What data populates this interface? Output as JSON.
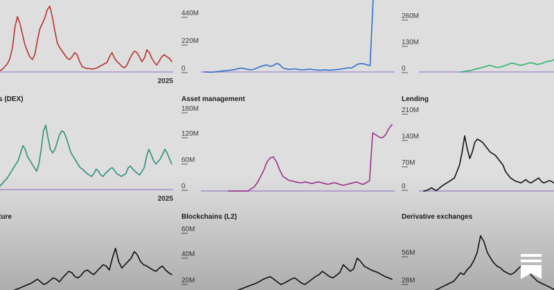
{
  "chart_data": [
    {
      "type": "line",
      "title": "",
      "color": "#b8322b",
      "x_end_label": "2025",
      "yticks": [],
      "ymax": 100,
      "values": [
        2,
        4,
        8,
        12,
        20,
        35,
        65,
        80,
        70,
        55,
        40,
        30,
        22,
        18,
        25,
        45,
        62,
        70,
        78,
        90,
        95,
        80,
        60,
        42,
        35,
        30,
        25,
        20,
        18,
        22,
        28,
        25,
        15,
        8,
        6,
        5,
        5,
        4,
        5,
        6,
        8,
        10,
        12,
        14,
        22,
        28,
        20,
        15,
        12,
        8,
        6,
        10,
        18,
        25,
        30,
        28,
        22,
        15,
        20,
        32,
        28,
        20,
        14,
        10,
        16,
        22,
        25,
        22,
        20,
        15
      ]
    },
    {
      "type": "line",
      "title": "",
      "color": "#2f6fc9",
      "yticks": [
        "0",
        "220M",
        "440M"
      ],
      "ymax": 500,
      "values": [
        0,
        0,
        -2,
        0,
        2,
        5,
        8,
        10,
        12,
        15,
        18,
        25,
        28,
        22,
        18,
        15,
        20,
        30,
        38,
        45,
        50,
        40,
        45,
        60,
        55,
        30,
        22,
        18,
        20,
        22,
        18,
        15,
        16,
        18,
        20,
        15,
        14,
        12,
        14,
        15,
        12,
        14,
        16,
        18,
        22,
        25,
        30,
        28,
        40,
        55,
        60,
        58,
        50,
        45,
        520,
        540,
        530,
        525,
        535,
        545,
        525
      ]
    },
    {
      "type": "line",
      "title": "",
      "color": "#2fb36e",
      "yticks": [
        "0",
        "130M",
        "260M"
      ],
      "ymax": 300,
      "values": [
        0,
        2,
        4,
        6,
        8,
        12,
        15,
        18,
        22,
        25,
        30,
        28,
        24,
        20,
        22,
        26,
        30,
        35,
        40,
        38,
        34,
        30,
        32,
        36,
        40,
        42,
        38,
        34,
        36,
        40,
        45,
        48,
        50,
        55
      ]
    },
    {
      "type": "line",
      "title": "s (DEX)",
      "color": "#2f8f7a",
      "x_end_label": "2025",
      "yticks": [],
      "ymax": 100,
      "values": [
        5,
        8,
        12,
        15,
        20,
        25,
        30,
        35,
        40,
        50,
        60,
        55,
        45,
        40,
        35,
        30,
        25,
        35,
        55,
        80,
        88,
        70,
        55,
        50,
        55,
        65,
        75,
        80,
        78,
        70,
        60,
        50,
        45,
        40,
        35,
        30,
        28,
        25,
        22,
        20,
        18,
        22,
        28,
        25,
        20,
        18,
        22,
        25,
        28,
        30,
        26,
        22,
        20,
        18,
        20,
        22,
        30,
        32,
        28,
        25,
        22,
        20,
        25,
        30,
        45,
        55,
        48,
        40,
        35,
        38,
        42,
        48,
        55,
        50,
        42,
        35
      ]
    },
    {
      "type": "line",
      "title": "Asset management",
      "color": "#9b2f8f",
      "yticks": [
        "0",
        "60M",
        "120M",
        "180M"
      ],
      "ymax": 190,
      "values": [
        0,
        0,
        0,
        0,
        0,
        0,
        0,
        5,
        10,
        20,
        35,
        50,
        70,
        80,
        82,
        70,
        50,
        35,
        30,
        25,
        24,
        22,
        20,
        20,
        22,
        20,
        18,
        20,
        22,
        20,
        18,
        16,
        18,
        20,
        18,
        15,
        14,
        16,
        18,
        20,
        22,
        18,
        16,
        20,
        25,
        140,
        135,
        130,
        128,
        135,
        150,
        160
      ]
    },
    {
      "type": "line",
      "title": "Lending",
      "color": "#111111",
      "yticks": [
        "0",
        "70M",
        "140M",
        "210M"
      ],
      "ymax": 230,
      "values": [
        0,
        2,
        5,
        10,
        5,
        2,
        8,
        15,
        20,
        25,
        30,
        35,
        40,
        60,
        80,
        120,
        170,
        130,
        100,
        120,
        150,
        160,
        155,
        150,
        140,
        130,
        120,
        115,
        110,
        100,
        90,
        80,
        60,
        50,
        40,
        35,
        30,
        28,
        25,
        30,
        35,
        28,
        25,
        30,
        35,
        40,
        30,
        25,
        28,
        32,
        30,
        25
      ]
    },
    {
      "type": "line",
      "title": "ture",
      "color": "#111111",
      "yticks": [],
      "ymax": 100,
      "values": [
        2,
        4,
        6,
        8,
        10,
        12,
        14,
        16,
        18,
        20,
        22,
        25,
        28,
        24,
        20,
        22,
        26,
        30,
        28,
        24,
        30,
        35,
        40,
        38,
        32,
        30,
        34,
        40,
        42,
        38,
        35,
        40,
        45,
        50,
        48,
        42,
        60,
        75,
        55,
        45,
        50,
        55,
        60,
        70,
        65,
        55,
        50,
        48,
        45,
        42,
        40,
        45,
        48,
        42,
        38,
        35
      ]
    },
    {
      "type": "line",
      "title": "Blockchains (L2)",
      "color": "#111111",
      "yticks": [
        "20M",
        "40M",
        "60M"
      ],
      "ymax": 100,
      "values": [
        0,
        1,
        2,
        3,
        4,
        5,
        6,
        8,
        10,
        12,
        14,
        16,
        18,
        20,
        22,
        25,
        28,
        30,
        32,
        28,
        24,
        20,
        22,
        25,
        28,
        30,
        26,
        22,
        20,
        24,
        28,
        32,
        35,
        40,
        36,
        32,
        30,
        34,
        38,
        50,
        45,
        40,
        44,
        60,
        55,
        48,
        45,
        42,
        40,
        38,
        35,
        32,
        30,
        28
      ]
    },
    {
      "type": "line",
      "title": "Derivative exchanges",
      "color": "#111111",
      "yticks": [
        "28M",
        "56M"
      ],
      "ymax": 84,
      "values": [
        2,
        4,
        6,
        8,
        10,
        12,
        14,
        16,
        18,
        20,
        25,
        30,
        28,
        34,
        38,
        45,
        55,
        75,
        68,
        55,
        48,
        42,
        38,
        36,
        32,
        30,
        28,
        30,
        34,
        38,
        36,
        32,
        28,
        24,
        20,
        18,
        16,
        14,
        12,
        10
      ]
    }
  ]
}
